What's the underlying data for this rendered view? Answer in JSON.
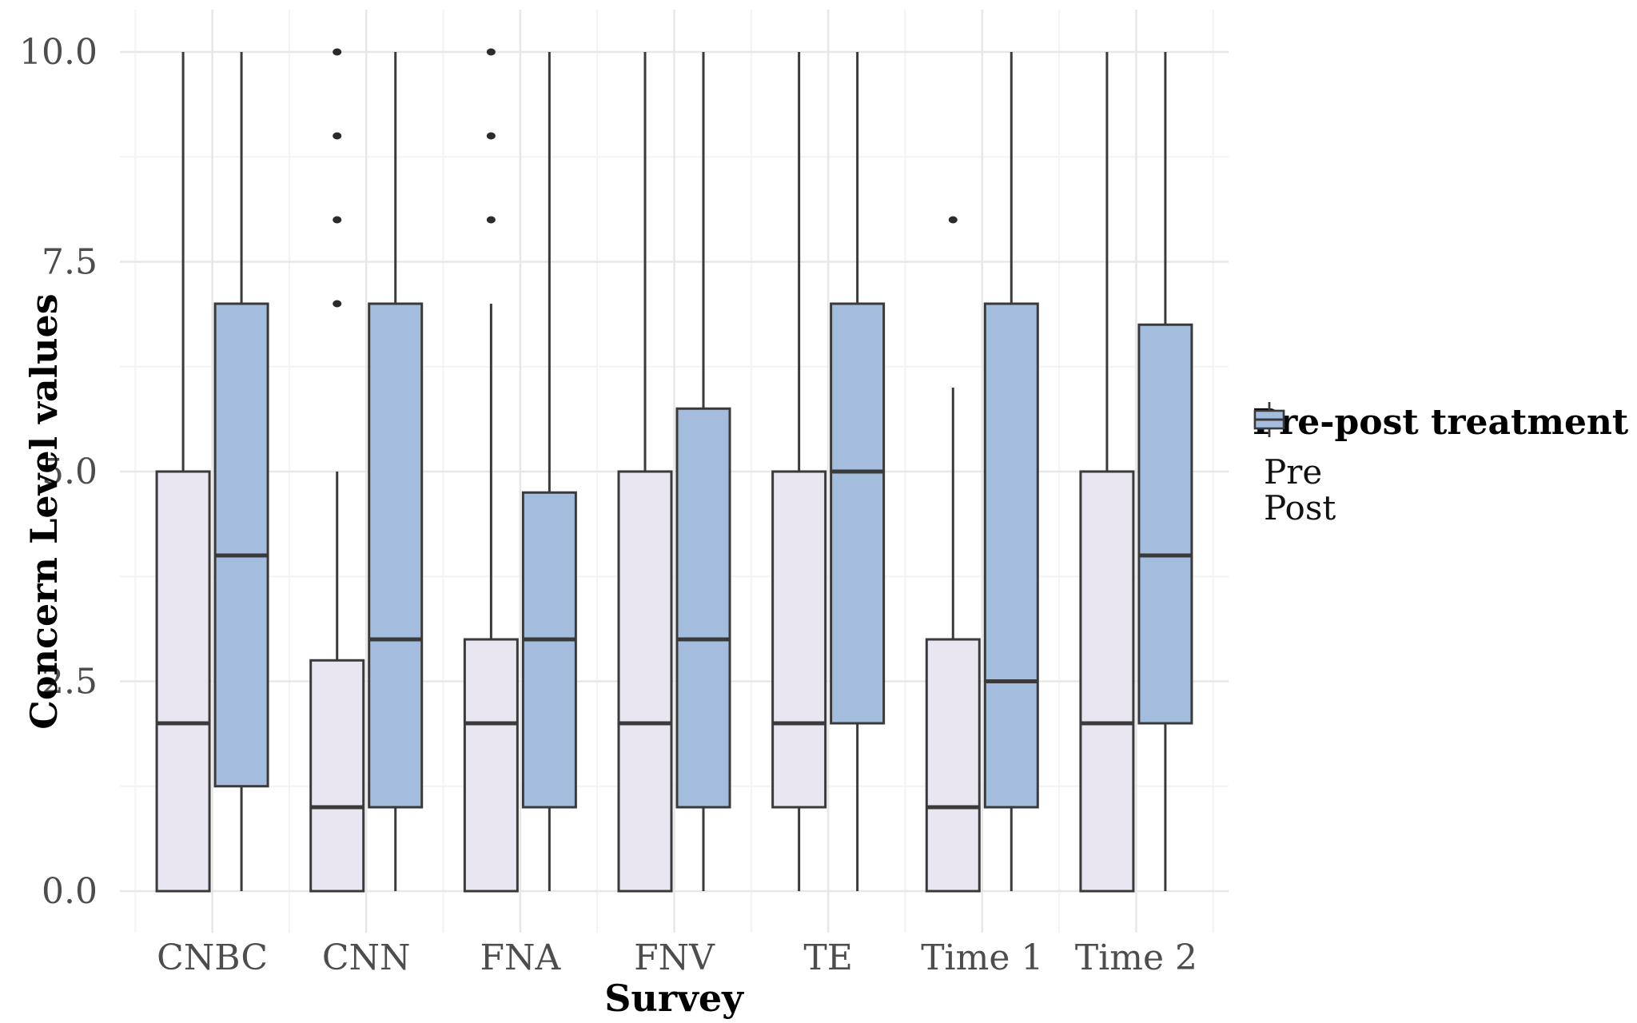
{
  "chart_data": {
    "type": "boxplot",
    "title": "",
    "xlabel": "Survey",
    "ylabel": "Concern Level values",
    "categories": [
      "CNBC",
      "CNN",
      "FNA",
      "FNV",
      "TE",
      "Time 1",
      "Time 2"
    ],
    "y_axis": {
      "tick_labels": [
        "0.0",
        "2.5",
        "5.0",
        "7.5",
        "10.0"
      ],
      "tick_values": [
        0,
        2.5,
        5,
        7.5,
        10
      ],
      "minor_values": [
        1.25,
        3.75,
        6.25,
        8.75
      ],
      "range": [
        -0.5,
        10.5
      ],
      "grid": true
    },
    "legend": {
      "title": "Pre-post treatment",
      "position": "right",
      "entries": [
        {
          "label": "Pre",
          "color": "#e9e6f1"
        },
        {
          "label": "Post",
          "color": "#a4bdde"
        }
      ]
    },
    "colors": {
      "pre_fill": "#e9e6f1",
      "post_fill": "#a4bdde",
      "box_border": "#3a3a3a",
      "outlier": "#2b2b2b",
      "tick_label": "#4d4d4d",
      "grid_major": "#e7e7e7",
      "grid_minor": "#f3f3f3"
    },
    "series": [
      {
        "name": "Pre",
        "color": "#e9e6f1",
        "boxes": [
          {
            "category": "CNBC",
            "whisker_low": 0,
            "q1": 0,
            "median": 2,
            "q3": 5,
            "whisker_high": 10,
            "outliers": []
          },
          {
            "category": "CNN",
            "whisker_low": 0,
            "q1": 0,
            "median": 1,
            "q3": 2.75,
            "whisker_high": 5,
            "outliers": [
              7,
              8,
              9,
              10
            ]
          },
          {
            "category": "FNA",
            "whisker_low": 0,
            "q1": 0,
            "median": 2,
            "q3": 3,
            "whisker_high": 7,
            "outliers": [
              8,
              9,
              10
            ]
          },
          {
            "category": "FNV",
            "whisker_low": 0,
            "q1": 0,
            "median": 2,
            "q3": 5,
            "whisker_high": 10,
            "outliers": []
          },
          {
            "category": "TE",
            "whisker_low": 0,
            "q1": 1,
            "median": 2,
            "q3": 5,
            "whisker_high": 10,
            "outliers": []
          },
          {
            "category": "Time 1",
            "whisker_low": 0,
            "q1": 0,
            "median": 1,
            "q3": 3,
            "whisker_high": 6,
            "outliers": [
              8
            ]
          },
          {
            "category": "Time 2",
            "whisker_low": 0,
            "q1": 0,
            "median": 2,
            "q3": 5,
            "whisker_high": 10,
            "outliers": []
          }
        ]
      },
      {
        "name": "Post",
        "color": "#a4bdde",
        "boxes": [
          {
            "category": "CNBC",
            "whisker_low": 0,
            "q1": 1.25,
            "median": 4,
            "q3": 7,
            "whisker_high": 10,
            "outliers": []
          },
          {
            "category": "CNN",
            "whisker_low": 0,
            "q1": 1,
            "median": 3,
            "q3": 7,
            "whisker_high": 10,
            "outliers": []
          },
          {
            "category": "FNA",
            "whisker_low": 0,
            "q1": 1,
            "median": 3,
            "q3": 4.75,
            "whisker_high": 10,
            "outliers": []
          },
          {
            "category": "FNV",
            "whisker_low": 0,
            "q1": 1,
            "median": 3,
            "q3": 5.75,
            "whisker_high": 10,
            "outliers": []
          },
          {
            "category": "TE",
            "whisker_low": 0,
            "q1": 2,
            "median": 5,
            "q3": 7,
            "whisker_high": 10,
            "outliers": []
          },
          {
            "category": "Time 1",
            "whisker_low": 0,
            "q1": 1,
            "median": 2.5,
            "q3": 7,
            "whisker_high": 10,
            "outliers": []
          },
          {
            "category": "Time 2",
            "whisker_low": 0,
            "q1": 2,
            "median": 4,
            "q3": 6.75,
            "whisker_high": 10,
            "outliers": []
          }
        ]
      }
    ]
  }
}
